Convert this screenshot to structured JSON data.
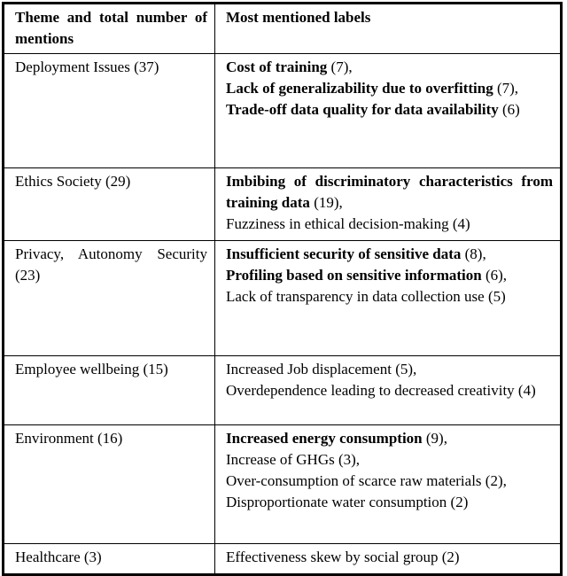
{
  "table": {
    "header": {
      "theme_col": "Theme and total number of mentions",
      "labels_col": "Most mentioned labels"
    },
    "rows": [
      {
        "theme": "Deployment Issues (37)",
        "labels": [
          {
            "text": "Cost of training",
            "count": "(7),",
            "bold": true
          },
          {
            "text": "Lack of generalizability due to overfitting",
            "count": "(7),",
            "bold": true
          },
          {
            "text": "Trade-off data quality for data availability",
            "count": "(6)",
            "bold": true
          }
        ]
      },
      {
        "theme": "Ethics Society (29)",
        "labels": [
          {
            "text": "Imbibing of discriminatory characteristics from training data",
            "count": "(19),",
            "bold": true
          },
          {
            "text": "Fuzziness in ethical decision-making",
            "count": "(4)",
            "bold": false
          }
        ]
      },
      {
        "theme": "Privacy, Autonomy Security (23)",
        "labels": [
          {
            "text": "Insufficient security of sensitive data",
            "count": "(8),",
            "bold": true
          },
          {
            "text": "Profiling based on sensitive information",
            "count": "(6),",
            "bold": true
          },
          {
            "text": "Lack of transparency in data collection use",
            "count": "(5)",
            "bold": false
          }
        ]
      },
      {
        "theme": "Employee wellbeing (15)",
        "labels": [
          {
            "text": "Increased Job displacement",
            "count": "(5),",
            "bold": false
          },
          {
            "text": "Overdependence leading to decreased creativity",
            "count": "(4)",
            "bold": false
          }
        ]
      },
      {
        "theme": "Environment (16)",
        "labels": [
          {
            "text": "Increased energy consumption",
            "count": "(9),",
            "bold": true
          },
          {
            "text": "Increase of GHGs",
            "count": "(3),",
            "bold": false
          },
          {
            "text": "Over-consumption of scarce raw materials",
            "count": "(2),",
            "bold": false
          },
          {
            "text": "Disproportionate water consumption",
            "count": "(2)",
            "bold": false
          }
        ]
      },
      {
        "theme": "Healthcare (3)",
        "labels": [
          {
            "text": "Effectiveness skew by social group",
            "count": "(2)",
            "bold": false
          }
        ]
      }
    ]
  },
  "colors": {
    "text": "#000000",
    "border": "#000000",
    "background": "#ffffff"
  }
}
